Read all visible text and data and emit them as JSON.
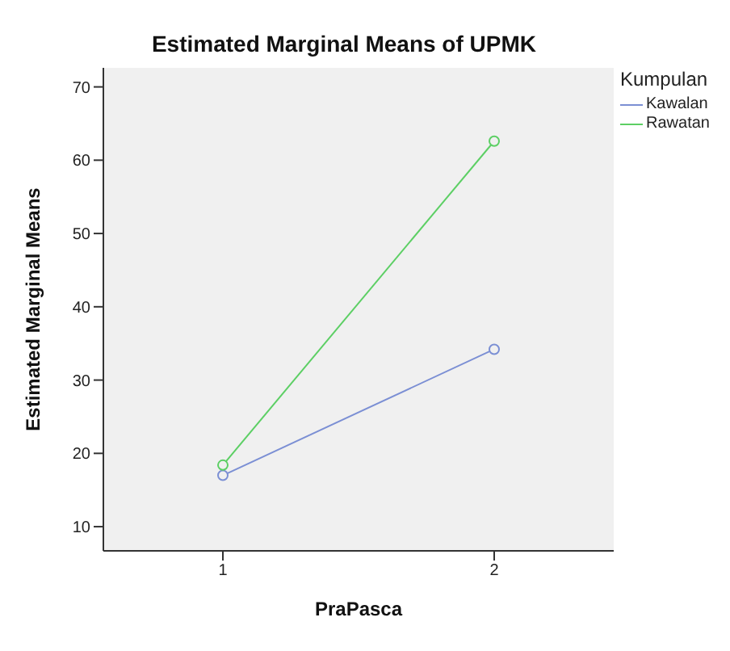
{
  "chart_data": {
    "type": "line",
    "title": "Estimated Marginal Means of UPMK",
    "xlabel": "PraPasca",
    "ylabel": "Estimated Marginal Means",
    "legend_title": "Kumpulan",
    "categories": [
      "1",
      "2"
    ],
    "series": [
      {
        "name": "Kawalan",
        "color": "#7b8fd4",
        "values": [
          17.0,
          34.2
        ]
      },
      {
        "name": "Rawatan",
        "color": "#5ccf64",
        "values": [
          18.4,
          62.6
        ]
      }
    ],
    "ylim": [
      6.7,
      72.6
    ],
    "yticks": [
      10,
      20,
      30,
      40,
      50,
      60,
      70
    ],
    "grid": false,
    "legend": "right",
    "marker": "circle",
    "line_style": "solid"
  }
}
